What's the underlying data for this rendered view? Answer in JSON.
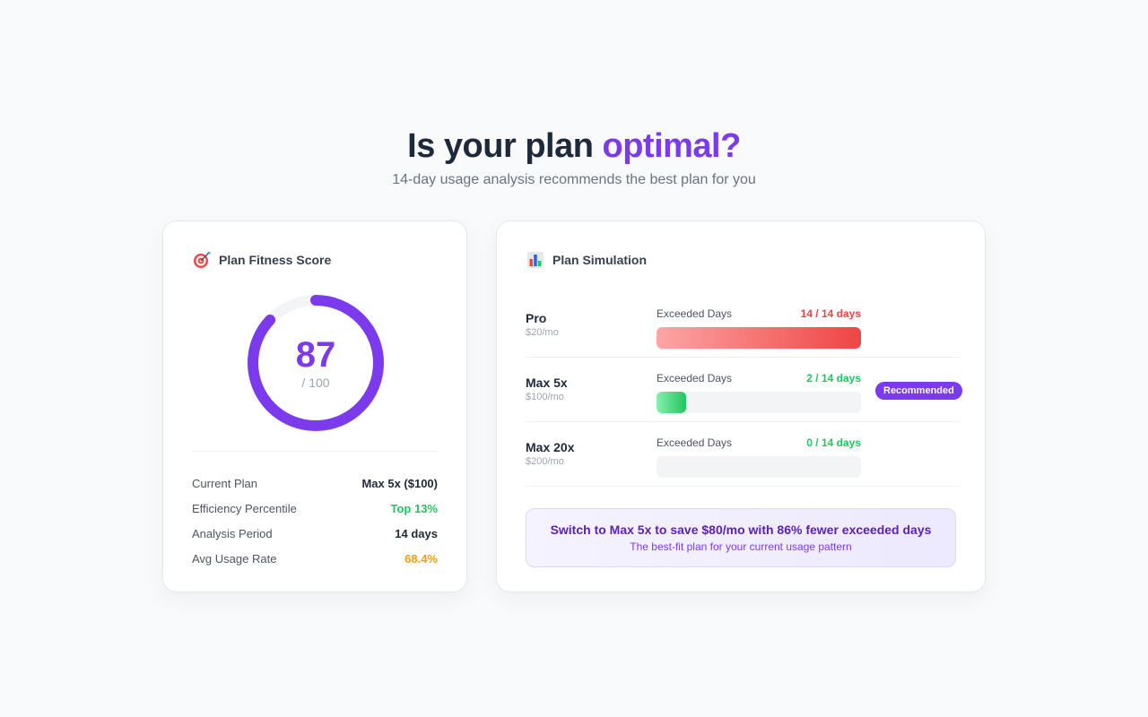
{
  "hero": {
    "title_prefix": "Is your plan ",
    "title_accent": "optimal?",
    "subtitle": "14-day usage analysis recommends the best plan for you"
  },
  "fitness": {
    "icon": "target-icon",
    "title": "Plan Fitness Score",
    "score": "87",
    "score_max": "/ 100",
    "score_fraction": 0.87,
    "stats": [
      {
        "label": "Current Plan",
        "value": "Max 5x ($100)",
        "color": "#1f2937"
      },
      {
        "label": "Efficiency Percentile",
        "value": "Top 13%",
        "color": "#22c55e"
      },
      {
        "label": "Analysis Period",
        "value": "14 days",
        "color": "#1f2937"
      },
      {
        "label": "Avg Usage Rate",
        "value": "68.4%",
        "color": "#f59e0b"
      }
    ]
  },
  "simulation": {
    "icon": "bar-chart-icon",
    "title": "Plan Simulation",
    "plans": [
      {
        "name": "Pro",
        "price": "$20/mo",
        "bar_label": "Exceeded Days",
        "bar_value": "14 / 14 days",
        "value_color": "#ef4444",
        "fill": 1.0,
        "fill_style": "red",
        "badge": ""
      },
      {
        "name": "Max 5x",
        "price": "$100/mo",
        "bar_label": "Exceeded Days",
        "bar_value": "2 / 14 days",
        "value_color": "#22c55e",
        "fill": 0.143,
        "fill_style": "green",
        "badge": "Recommended"
      },
      {
        "name": "Max 20x",
        "price": "$200/mo",
        "bar_label": "Exceeded Days",
        "bar_value": "0 / 14 days",
        "value_color": "#22c55e",
        "fill": 0.0,
        "fill_style": "green",
        "badge": ""
      }
    ],
    "callout_main": "Switch to Max 5x to save $80/mo with 86% fewer exceeded days",
    "callout_sub": "The best-fit plan for your current usage pattern"
  },
  "colors": {
    "accent": "#7c3aed",
    "red": "#ef4444",
    "green": "#22c55e",
    "orange": "#f59e0b"
  }
}
